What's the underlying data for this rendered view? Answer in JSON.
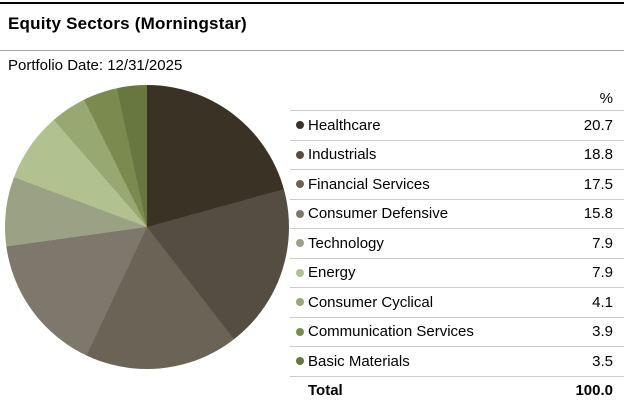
{
  "header": {
    "title": "Equity Sectors (Morningstar)",
    "subtitle": "Portfolio Date: 12/31/2025"
  },
  "legend": {
    "value_header": "%",
    "total_label": "Total",
    "total_value": "100.0"
  },
  "chart_data": {
    "type": "pie",
    "title": "Equity Sectors (Morningstar)",
    "subtitle": "Portfolio Date: 12/31/2025",
    "unit": "%",
    "start_angle_deg": 0,
    "direction": "clockwise",
    "legend_position": "right",
    "slices": [
      {
        "label": "Healthcare",
        "value": 20.7,
        "color": "#3b3226"
      },
      {
        "label": "Industrials",
        "value": 18.8,
        "color": "#554d42"
      },
      {
        "label": "Financial Services",
        "value": 17.5,
        "color": "#6b6355"
      },
      {
        "label": "Consumer Defensive",
        "value": 15.8,
        "color": "#7e776b"
      },
      {
        "label": "Technology",
        "value": 7.9,
        "color": "#9aa184"
      },
      {
        "label": "Energy",
        "value": 7.9,
        "color": "#b1c18f"
      },
      {
        "label": "Consumer Cyclical",
        "value": 4.1,
        "color": "#97a873"
      },
      {
        "label": "Communication Services",
        "value": 3.9,
        "color": "#7b8b4f"
      },
      {
        "label": "Basic Materials",
        "value": 3.5,
        "color": "#687740"
      }
    ],
    "total": {
      "label": "Total",
      "value": 100.0
    }
  }
}
